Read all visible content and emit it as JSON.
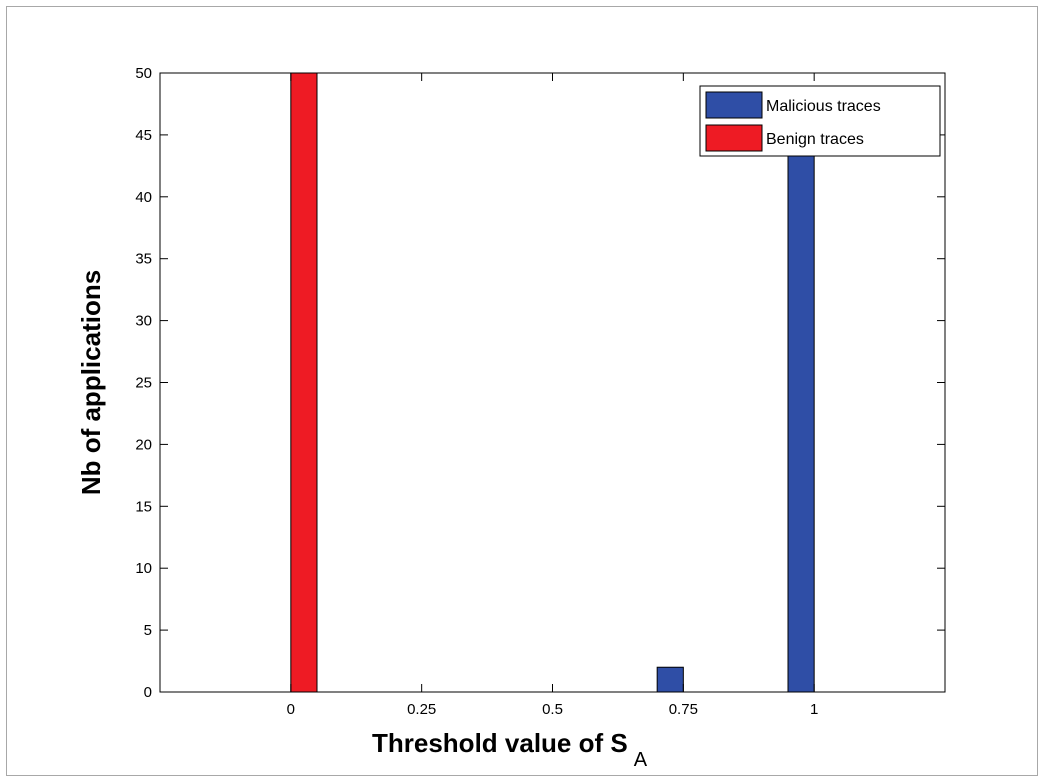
{
  "chart_data": {
    "type": "bar",
    "title": "",
    "xlabel": "Threshold value of S",
    "xlabel_subscript": "A",
    "ylabel": "Nb of applications",
    "categories": [
      "0",
      "0.25",
      "0.5",
      "0.75",
      "1"
    ],
    "series": [
      {
        "name": "Malicious traces",
        "color": "#2f4ea6",
        "values": [
          0,
          0,
          0,
          2,
          48
        ]
      },
      {
        "name": "Benign traces",
        "color": "#ee1b24",
        "values": [
          50,
          0,
          0,
          0,
          0
        ]
      }
    ],
    "ylim": [
      0,
      50
    ],
    "yticks": [
      0,
      5,
      10,
      15,
      20,
      25,
      30,
      35,
      40,
      45,
      50
    ],
    "xlim": [
      -0.25,
      1.25
    ],
    "x_values": [
      0,
      0.25,
      0.5,
      0.75,
      1
    ],
    "legend_position": "top-right",
    "grid": false
  }
}
